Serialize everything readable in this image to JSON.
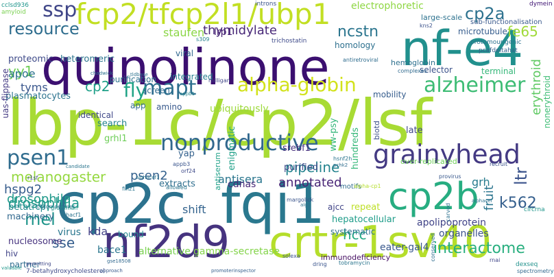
{
  "words": [
    {
      "t": "quinolinone",
      "c": "#3b0f70"
    },
    {
      "t": "lbp-1c/cp2/lsf",
      "c": "#a8db34"
    },
    {
      "t": "nf-e4",
      "c": "#21908d"
    },
    {
      "t": "cp2c",
      "c": "#2c728e"
    },
    {
      "t": "fcp2/tfcp2l1/ubp1",
      "c": "#c2df23"
    },
    {
      "t": "fqi1",
      "c": "#2a788e"
    },
    {
      "t": "nf2d9",
      "c": "#46337f"
    },
    {
      "t": "crtr-1sv40",
      "c": "#b5de2b"
    },
    {
      "t": "cp2b",
      "c": "#27ad81"
    },
    {
      "t": "grainyhead",
      "c": "#443a83"
    },
    {
      "t": "nonproductive",
      "c": "#31688e"
    },
    {
      "t": "alzheimer",
      "c": "#3dbc74"
    },
    {
      "t": "alpha-globin",
      "c": "#d2e21b"
    },
    {
      "t": "mapt",
      "c": "#2e6f8e"
    },
    {
      "t": "psen1",
      "c": "#2f6c8e"
    },
    {
      "t": "ssp",
      "c": "#404688"
    },
    {
      "t": "ncstn",
      "c": "#2b758e"
    },
    {
      "t": "cp2a",
      "c": "#2c718e"
    },
    {
      "t": "resource",
      "c": "#2e6d8e"
    },
    {
      "t": "melanogaster",
      "c": "#95d840"
    },
    {
      "t": "fly",
      "c": "#20a386"
    },
    {
      "t": "mel",
      "c": "#1f958b"
    },
    {
      "t": "yy1",
      "c": "#6ece58"
    },
    {
      "t": "cp2",
      "c": "#1fa088"
    },
    {
      "t": "fe65",
      "c": "#a0da39"
    },
    {
      "t": "k562",
      "c": "#355f8d"
    },
    {
      "t": "drosophila",
      "c": "#1f998a"
    },
    {
      "t": "hcc",
      "c": "#22a884"
    },
    {
      "t": "ltr",
      "c": "#3a538b"
    },
    {
      "t": "pipeline",
      "c": "#25838e"
    },
    {
      "t": "annotated",
      "c": "#482475"
    },
    {
      "t": "psen2",
      "c": "#34618d"
    },
    {
      "t": "hspg2",
      "c": "#365c8d"
    },
    {
      "t": "interactome",
      "c": "#29af7f"
    },
    {
      "t": "sse",
      "c": "#355e8d"
    },
    {
      "t": "thymidylate",
      "c": "#482878"
    },
    {
      "t": "staufen",
      "c": "#8bd646"
    },
    {
      "t": "tyms",
      "c": "#39568c"
    },
    {
      "t": "apoe",
      "c": "#2c738e"
    },
    {
      "t": "fruit",
      "c": "#2b758e"
    },
    {
      "t": "grh",
      "c": "#287c8e"
    },
    {
      "t": "erythroid",
      "c": "#5ec962"
    },
    {
      "t": "kda",
      "c": "#424086"
    },
    {
      "t": "virus",
      "c": "#2a778e"
    },
    {
      "t": "nucleosome",
      "c": "#46327e"
    },
    {
      "t": "bace1",
      "c": "#2a768e"
    },
    {
      "t": "shift",
      "c": "#33638d"
    },
    {
      "t": "alternative",
      "c": "#7ad151"
    },
    {
      "t": "gamma-secretase",
      "c": "#84d44b"
    },
    {
      "t": "immunodeficiency",
      "c": "#471063"
    },
    {
      "t": "eater-gal4",
      "c": "#38588c"
    },
    {
      "t": "systematic",
      "c": "#2c718e"
    },
    {
      "t": "hepatocellular",
      "c": "#1e9c89"
    },
    {
      "t": "apolipoprotein",
      "c": "#404387"
    },
    {
      "t": "organelles",
      "c": "#3b528b"
    },
    {
      "t": "betatrcp",
      "c": "#23898e"
    },
    {
      "t": "machinery",
      "c": "#31688e"
    },
    {
      "t": "drosophila",
      "c": "#1f998a"
    },
    {
      "t": "antisera",
      "c": "#2a768e"
    },
    {
      "t": "cdnas",
      "c": "#482878"
    },
    {
      "t": "extracts",
      "c": "#2e6e8e"
    },
    {
      "t": "purified",
      "c": "#3e4989"
    },
    {
      "t": "repeat",
      "c": "#bddf26"
    },
    {
      "t": "ajcc",
      "c": "#414487"
    },
    {
      "t": "bound",
      "c": "#23898e"
    },
    {
      "t": "electrophoretic",
      "c": "#8fd744"
    },
    {
      "t": "proteomic",
      "c": "#3e4a89"
    },
    {
      "t": "heteromeric",
      "c": "#2b748e"
    },
    {
      "t": "lrp1",
      "c": "#482374"
    },
    {
      "t": "homology",
      "c": "#2d708e"
    },
    {
      "t": "microtubule",
      "c": "#365d8d"
    },
    {
      "t": "large-scale",
      "c": "#2c718e"
    },
    {
      "t": "sub-functionalisation",
      "c": "#38588c"
    },
    {
      "t": "selector",
      "c": "#3b528b"
    },
    {
      "t": "hemoglobin",
      "c": "#2d708e"
    },
    {
      "t": "terminal",
      "c": "#35b779"
    },
    {
      "t": "nonerythroid",
      "c": "#3dbc74"
    },
    {
      "t": "late",
      "c": "#3f4788"
    },
    {
      "t": "mobility",
      "c": "#365d8d"
    },
    {
      "t": "ubiquitously",
      "c": "#9dd93b"
    },
    {
      "t": "integrated",
      "c": "#277f8e"
    },
    {
      "t": "purification",
      "c": "#2c718e"
    },
    {
      "t": "screen",
      "c": "#306a8e"
    },
    {
      "t": "plasmatocytes",
      "c": "#2c738e"
    },
    {
      "t": "identical",
      "c": "#3f4788"
    },
    {
      "t": "search",
      "c": "#25838e"
    },
    {
      "t": "ww-psy",
      "c": "#32b67a"
    },
    {
      "t": "srebf1",
      "c": "#46307e"
    },
    {
      "t": "hundreds",
      "c": "#35b779"
    },
    {
      "t": "enigmatic",
      "c": "#1fa088"
    },
    {
      "t": "yap",
      "c": "#34618d"
    },
    {
      "t": "grhl1",
      "c": "#6ece58"
    },
    {
      "t": "app",
      "c": "#306a8e"
    },
    {
      "t": "amino",
      "c": "#38598c"
    },
    {
      "t": "uas-flippase",
      "c": "#443a83"
    },
    {
      "t": "viral",
      "c": "#31678e"
    },
    {
      "t": "hiv",
      "c": "#414487"
    },
    {
      "t": "partner",
      "c": "#2f6b8e"
    },
    {
      "t": "over-replicated",
      "c": "#6ece58"
    },
    {
      "t": "biotd",
      "c": "#3c508b"
    },
    {
      "t": "motifs",
      "c": "#2f6c8e"
    },
    {
      "t": "antiserum",
      "c": "#1fa188"
    },
    {
      "t": "cclsd936",
      "c": "#1f958b"
    },
    {
      "t": "amyloid",
      "c": "#7ad151"
    },
    {
      "t": "introns",
      "c": "#3a548c"
    },
    {
      "t": "dymein",
      "c": "#3b0f70"
    },
    {
      "t": "s309",
      "c": "#26828e"
    },
    {
      "t": "trichostatin",
      "c": "#3e4a89"
    },
    {
      "t": "kns2",
      "c": "#3b528b"
    },
    {
      "t": "tldbase",
      "c": "#2c728e"
    },
    {
      "t": "protumourigenic",
      "c": "#2c728e"
    },
    {
      "t": "pcafdeltahat",
      "c": "#34618d"
    },
    {
      "t": "antiretroviral",
      "c": "#2f6c8e"
    },
    {
      "t": "complexes",
      "c": "#306a8e"
    },
    {
      "t": "milligan",
      "c": "#404588"
    },
    {
      "t": "chadwick",
      "c": "#2d708e"
    },
    {
      "t": "appb1",
      "c": "#25858e"
    },
    {
      "t": "appb3",
      "c": "#3a548c"
    },
    {
      "t": "orf24",
      "c": "#3e4a89"
    },
    {
      "t": "circrna",
      "c": "#1f958b"
    },
    {
      "t": "r1sf",
      "c": "#3e4a89"
    },
    {
      "t": "finz1",
      "c": "#2b748e"
    },
    {
      "t": "allowed",
      "c": "#2b758e"
    },
    {
      "t": "chromosomes",
      "c": "#2d708e"
    },
    {
      "t": "grossman",
      "c": "#21918c"
    },
    {
      "t": "hacf1",
      "c": "#2c738e"
    },
    {
      "t": "solexa",
      "c": "#3b528b"
    },
    {
      "t": "dring",
      "c": "#3a548c"
    },
    {
      "t": "rnai",
      "c": "#404588"
    },
    {
      "t": "conserved",
      "c": "#2f6c8e"
    },
    {
      "t": "carved",
      "c": "#2c718e"
    },
    {
      "t": "dexseq",
      "c": "#21918c"
    },
    {
      "t": "spectrometry",
      "c": "#31688e"
    },
    {
      "t": "7-betahydroxycholesterol",
      "c": "#3e4a89"
    },
    {
      "t": "approach",
      "c": "#38588c"
    },
    {
      "t": "promoterinspector",
      "c": "#355f8d"
    },
    {
      "t": "tobramycin",
      "c": "#2b758e"
    },
    {
      "t": "permitting",
      "c": "#3f4788"
    },
    {
      "t": "valuable",
      "c": "#1f978b"
    },
    {
      "t": "gse18508",
      "c": "#31688e"
    },
    {
      "t": "candidate",
      "c": "#2b758e"
    },
    {
      "t": "recruit",
      "c": "#3b528b"
    },
    {
      "t": "alpha-cp1",
      "c": "#b5de2b"
    },
    {
      "t": "alphacef1",
      "c": "#2a768e"
    },
    {
      "t": "pchk2",
      "c": "#2f6c8e"
    },
    {
      "t": "hsnf2h",
      "c": "#2b748e"
    },
    {
      "t": "margolick",
      "c": "#3a548c"
    },
    {
      "t": "alg9",
      "c": "#2b758e"
    },
    {
      "t": "provirus",
      "c": "#38588c"
    },
    {
      "t": "alphacef",
      "c": "#2c718e"
    }
  ]
}
